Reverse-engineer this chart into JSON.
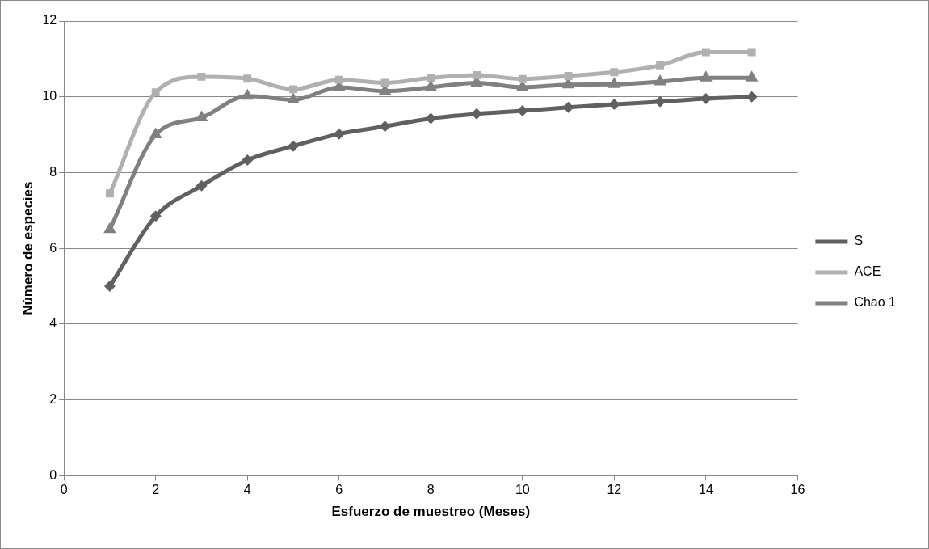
{
  "chart_data": {
    "type": "line",
    "xlabel": "Esfuerzo de muestreo (Meses)",
    "ylabel": "Número de especies",
    "x": [
      1,
      2,
      3,
      4,
      5,
      6,
      7,
      8,
      9,
      10,
      11,
      12,
      13,
      14,
      15
    ],
    "series": [
      {
        "name": "S",
        "color": "#606060",
        "marker": "diamond",
        "values": [
          5,
          6.85,
          7.65,
          8.33,
          8.7,
          9.02,
          9.22,
          9.43,
          9.55,
          9.63,
          9.72,
          9.8,
          9.87,
          9.95,
          10.0
        ]
      },
      {
        "name": "ACE",
        "color": "#b0b0b0",
        "marker": "square",
        "values": [
          7.45,
          10.12,
          10.53,
          10.48,
          10.2,
          10.45,
          10.37,
          10.5,
          10.57,
          10.47,
          10.55,
          10.65,
          10.83,
          11.18,
          11.18
        ]
      },
      {
        "name": "Chao 1",
        "color": "#808080",
        "marker": "triangle",
        "values": [
          6.5,
          9.0,
          9.45,
          10.02,
          9.92,
          10.25,
          10.15,
          10.25,
          10.37,
          10.25,
          10.32,
          10.33,
          10.4,
          10.5,
          10.5
        ]
      }
    ],
    "xlim": [
      0,
      16
    ],
    "xticks": [
      0,
      2,
      4,
      6,
      8,
      10,
      12,
      14,
      16
    ],
    "ylim": [
      0,
      12
    ],
    "yticks": [
      0,
      2,
      4,
      6,
      8,
      10,
      12
    ],
    "grid": "y",
    "legend": "right",
    "line_style": "solid"
  }
}
